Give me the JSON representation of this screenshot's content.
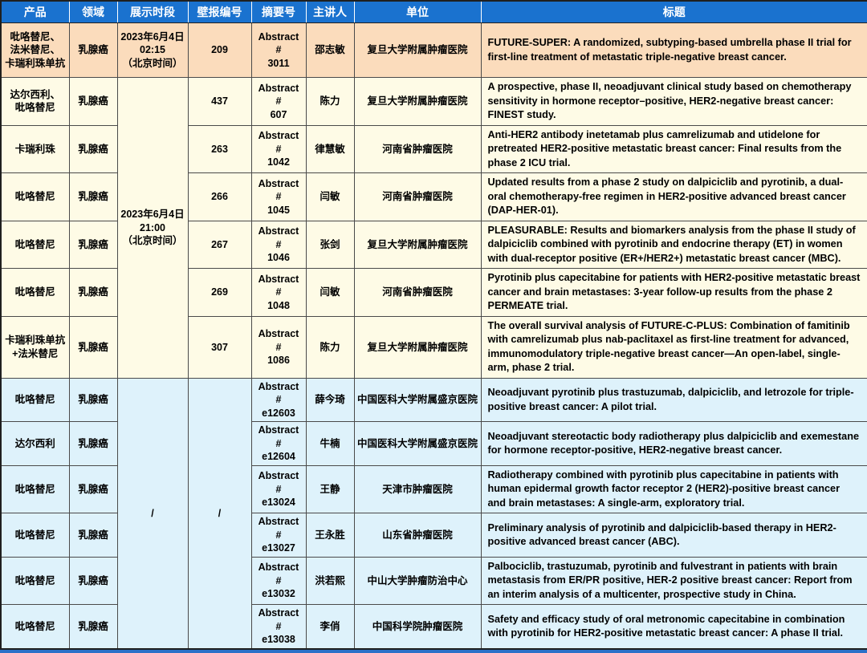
{
  "colors": {
    "header_bg": "#1a72cf",
    "header_text": "#ffffff",
    "section_morning_bg": "#fbdcbc",
    "section_evening_bg": "#fefbe6",
    "section_online_bg": "#def2fb",
    "grid_border": "#4a4a4a",
    "bottom_strip": "#2a70c8"
  },
  "table": {
    "headers": [
      "产品",
      "领域",
      "展示时段",
      "壁报编号",
      "摘要号",
      "主讲人",
      "单位",
      "标题"
    ],
    "merged": {
      "time_evening": "2023年6月4日\n21:00\n（北京时间）",
      "time_online": "/",
      "poster_online": "/"
    },
    "rows": [
      {
        "product": "吡咯替尼、\n法米替尼、\n卡瑞利珠单抗",
        "field": "乳腺癌",
        "time": "2023年6月4日\n02:15\n（北京时间）",
        "poster": "209",
        "abstract": "Abstract #\n3011",
        "speaker": "邵志敏",
        "org": "复旦大学附属肿瘤医院",
        "title": "FUTURE-SUPER: A randomized, subtyping-based umbrella phase II trial for first-line treatment of metastatic triple-negative breast cancer."
      },
      {
        "product": "达尔西利、\n吡咯替尼",
        "field": "乳腺癌",
        "poster": "437",
        "abstract": "Abstract #\n607",
        "speaker": "陈力",
        "org": "复旦大学附属肿瘤医院",
        "title": "A prospective, phase II, neoadjuvant clinical study based on chemotherapy sensitivity in hormone receptor–positive, HER2-negative breast cancer: FINEST study."
      },
      {
        "product": "卡瑞利珠",
        "field": "乳腺癌",
        "poster": "263",
        "abstract": "Abstract #\n1042",
        "speaker": "律慧敏",
        "org": "河南省肿瘤医院",
        "title": "Anti-HER2 antibody inetetamab plus camrelizumab and utidelone for pretreated HER2-positive metastatic breast cancer: Final results from the phase 2 ICU trial."
      },
      {
        "product": "吡咯替尼",
        "field": "乳腺癌",
        "poster": "266",
        "abstract": "Abstract #\n1045",
        "speaker": "闫敏",
        "org": "河南省肿瘤医院",
        "title": "Updated results from a phase 2 study on dalpiciclib and pyrotinib, a dual-oral chemotherapy-free regimen in HER2-positive advanced breast cancer (DAP-HER-01)."
      },
      {
        "product": "吡咯替尼",
        "field": "乳腺癌",
        "poster": "267",
        "abstract": "Abstract #\n1046",
        "speaker": "张剑",
        "org": "复旦大学附属肿瘤医院",
        "title": "PLEASURABLE: Results and biomarkers analysis from the phase II study of dalpiciclib combined with pyrotinib and endocrine therapy (ET) in women with dual-receptor positive (ER+/HER2+) metastatic breast cancer (MBC)."
      },
      {
        "product": "吡咯替尼",
        "field": "乳腺癌",
        "poster": "269",
        "abstract": "Abstract #\n1048",
        "speaker": "闫敏",
        "org": "河南省肿瘤医院",
        "title": "Pyrotinib plus capecitabine for patients with HER2-positive metastatic breast cancer and brain metastases: 3-year follow-up results from the phase 2 PERMEATE trial."
      },
      {
        "product": "卡瑞利珠单抗\n+法米替尼",
        "field": "乳腺癌",
        "poster": "307",
        "abstract": "Abstract #\n1086",
        "speaker": "陈力",
        "org": "复旦大学附属肿瘤医院",
        "title": "The overall survival analysis of FUTURE-C-PLUS: Combination of famitinib with camrelizumab plus nab-paclitaxel as first-line treatment for advanced, immunomodulatory triple-negative breast cancer—An open-label, single-arm, phase 2 trial."
      },
      {
        "product": "吡咯替尼",
        "field": "乳腺癌",
        "abstract": "Abstract #\ne12603",
        "speaker": "薛今琦",
        "org": "中国医科大学附属盛京医院",
        "title": "Neoadjuvant pyrotinib plus trastuzumab, dalpiciclib, and letrozole for triple-positive breast cancer: A pilot trial."
      },
      {
        "product": "达尔西利",
        "field": "乳腺癌",
        "abstract": "Abstract #\ne12604",
        "speaker": "牛楠",
        "org": "中国医科大学附属盛京医院",
        "title": "Neoadjuvant stereotactic body radiotherapy plus dalpiciclib and exemestane for hormone receptor-positive, HER2-negative breast cancer."
      },
      {
        "product": "吡咯替尼",
        "field": "乳腺癌",
        "abstract": "Abstract #\ne13024",
        "speaker": "王静",
        "org": "天津市肿瘤医院",
        "title": "Radiotherapy combined with pyrotinib plus capecitabine in patients with human epidermal growth factor receptor 2 (HER2)-positive breast cancer and brain metastases: A single-arm, exploratory trial."
      },
      {
        "product": "吡咯替尼",
        "field": "乳腺癌",
        "abstract": "Abstract #\ne13027",
        "speaker": "王永胜",
        "org": "山东省肿瘤医院",
        "title": "Preliminary analysis of pyrotinib and dalpiciclib-based therapy in HER2-positive advanced breast cancer (ABC)."
      },
      {
        "product": "吡咯替尼",
        "field": "乳腺癌",
        "abstract": "Abstract #\ne13032",
        "speaker": "洪若熙",
        "org": "中山大学肿瘤防治中心",
        "title": "Palbociclib, trastuzumab, pyrotinib and fulvestrant in patients with brain metastasis from ER/PR positive, HER-2 positive breast cancer: Report from an interim analysis of a multicenter, prospective study in China."
      },
      {
        "product": "吡咯替尼",
        "field": "乳腺癌",
        "abstract": "Abstract #\ne13038",
        "speaker": "李俏",
        "org": "中国科学院肿瘤医院",
        "title": "Safety and efficacy study of oral metronomic capecitabine in combination with pyrotinib for HER2-positive metastatic breast cancer: A phase II trial."
      }
    ]
  }
}
